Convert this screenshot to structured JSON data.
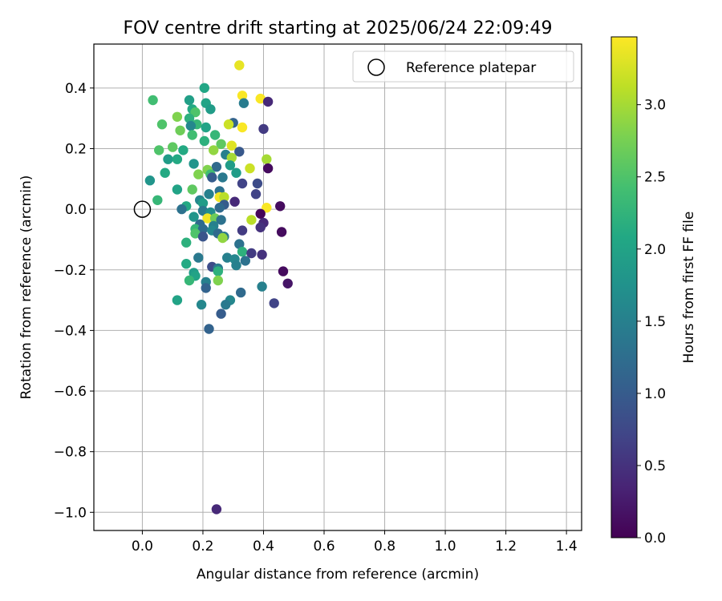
{
  "chart_data": {
    "type": "scatter",
    "title": "FOV centre drift starting at 2025/06/24 22:09:49",
    "xlabel": "Angular distance from reference (arcmin)",
    "ylabel": "Rotation from reference (arcmin)",
    "xlim": [
      -0.16,
      1.45
    ],
    "ylim": [
      -1.06,
      0.545
    ],
    "xticks": [
      0.0,
      0.2,
      0.4,
      0.6,
      0.8,
      1.0,
      1.2,
      1.4
    ],
    "yticks": [
      -1.0,
      -0.8,
      -0.6,
      -0.4,
      -0.2,
      0.0,
      0.2,
      0.4
    ],
    "xtick_labels": [
      "0.0",
      "0.2",
      "0.4",
      "0.6",
      "0.8",
      "1.0",
      "1.2",
      "1.4"
    ],
    "ytick_labels": [
      "−1.0",
      "−0.8",
      "−0.6",
      "−0.4",
      "−0.2",
      "0.0",
      "0.2",
      "0.4"
    ],
    "grid": true,
    "legend": {
      "entries": [
        "Reference platepar"
      ],
      "placement": "top-right"
    },
    "colorbar": {
      "label": "Hours from first FF file",
      "colormap": "viridis",
      "range": [
        0.0,
        3.47
      ],
      "ticks": [
        0.0,
        0.5,
        1.0,
        1.5,
        2.0,
        2.5,
        3.0
      ],
      "tick_labels": [
        "0.0",
        "0.5",
        "1.0",
        "1.5",
        "2.0",
        "2.5",
        "3.0"
      ]
    },
    "reference_point": {
      "x": 0.0,
      "y": 0.0,
      "label": "Reference platepar"
    },
    "points": [
      {
        "x": 0.32,
        "y": 0.475,
        "h": 3.35
      },
      {
        "x": 0.33,
        "y": 0.375,
        "h": 3.45
      },
      {
        "x": 0.39,
        "y": 0.365,
        "h": 3.45
      },
      {
        "x": 0.415,
        "y": 0.355,
        "h": 0.4
      },
      {
        "x": 0.335,
        "y": 0.35,
        "h": 1.45
      },
      {
        "x": 0.205,
        "y": 0.4,
        "h": 2.05
      },
      {
        "x": 0.155,
        "y": 0.36,
        "h": 1.95
      },
      {
        "x": 0.035,
        "y": 0.36,
        "h": 2.4
      },
      {
        "x": 0.21,
        "y": 0.35,
        "h": 2.0
      },
      {
        "x": 0.225,
        "y": 0.33,
        "h": 1.9
      },
      {
        "x": 0.165,
        "y": 0.33,
        "h": 2.1
      },
      {
        "x": 0.175,
        "y": 0.32,
        "h": 2.5
      },
      {
        "x": 0.115,
        "y": 0.305,
        "h": 2.8
      },
      {
        "x": 0.155,
        "y": 0.3,
        "h": 2.2
      },
      {
        "x": 0.065,
        "y": 0.28,
        "h": 2.5
      },
      {
        "x": 0.18,
        "y": 0.28,
        "h": 2.3
      },
      {
        "x": 0.16,
        "y": 0.275,
        "h": 1.6
      },
      {
        "x": 0.21,
        "y": 0.27,
        "h": 2.0
      },
      {
        "x": 0.3,
        "y": 0.285,
        "h": 1.1
      },
      {
        "x": 0.285,
        "y": 0.28,
        "h": 3.2
      },
      {
        "x": 0.33,
        "y": 0.27,
        "h": 3.45
      },
      {
        "x": 0.4,
        "y": 0.265,
        "h": 0.6
      },
      {
        "x": 0.125,
        "y": 0.26,
        "h": 2.7
      },
      {
        "x": 0.24,
        "y": 0.245,
        "h": 2.3
      },
      {
        "x": 0.165,
        "y": 0.245,
        "h": 2.4
      },
      {
        "x": 0.205,
        "y": 0.225,
        "h": 2.2
      },
      {
        "x": 0.26,
        "y": 0.215,
        "h": 2.6
      },
      {
        "x": 0.295,
        "y": 0.21,
        "h": 3.3
      },
      {
        "x": 0.1,
        "y": 0.205,
        "h": 2.6
      },
      {
        "x": 0.055,
        "y": 0.195,
        "h": 2.5
      },
      {
        "x": 0.135,
        "y": 0.195,
        "h": 2.1
      },
      {
        "x": 0.235,
        "y": 0.195,
        "h": 2.9
      },
      {
        "x": 0.32,
        "y": 0.19,
        "h": 0.95
      },
      {
        "x": 0.275,
        "y": 0.18,
        "h": 1.5
      },
      {
        "x": 0.295,
        "y": 0.17,
        "h": 3.0
      },
      {
        "x": 0.41,
        "y": 0.165,
        "h": 3.0
      },
      {
        "x": 0.085,
        "y": 0.165,
        "h": 1.9
      },
      {
        "x": 0.115,
        "y": 0.165,
        "h": 2.1
      },
      {
        "x": 0.17,
        "y": 0.15,
        "h": 1.8
      },
      {
        "x": 0.245,
        "y": 0.14,
        "h": 1.2
      },
      {
        "x": 0.29,
        "y": 0.145,
        "h": 1.9
      },
      {
        "x": 0.355,
        "y": 0.135,
        "h": 3.2
      },
      {
        "x": 0.415,
        "y": 0.135,
        "h": 0.1
      },
      {
        "x": 0.215,
        "y": 0.13,
        "h": 2.8
      },
      {
        "x": 0.075,
        "y": 0.12,
        "h": 2.1
      },
      {
        "x": 0.31,
        "y": 0.12,
        "h": 1.9
      },
      {
        "x": 0.185,
        "y": 0.115,
        "h": 2.8
      },
      {
        "x": 0.225,
        "y": 0.115,
        "h": 2.4
      },
      {
        "x": 0.23,
        "y": 0.105,
        "h": 1.0
      },
      {
        "x": 0.265,
        "y": 0.105,
        "h": 1.4
      },
      {
        "x": 0.025,
        "y": 0.095,
        "h": 1.8
      },
      {
        "x": 0.33,
        "y": 0.085,
        "h": 0.7
      },
      {
        "x": 0.38,
        "y": 0.085,
        "h": 0.8
      },
      {
        "x": 0.115,
        "y": 0.065,
        "h": 2.0
      },
      {
        "x": 0.165,
        "y": 0.065,
        "h": 2.6
      },
      {
        "x": 0.255,
        "y": 0.06,
        "h": 1.3
      },
      {
        "x": 0.22,
        "y": 0.05,
        "h": 1.5
      },
      {
        "x": 0.375,
        "y": 0.05,
        "h": 0.7
      },
      {
        "x": 0.255,
        "y": 0.04,
        "h": 3.4
      },
      {
        "x": 0.27,
        "y": 0.04,
        "h": 3.1
      },
      {
        "x": 0.05,
        "y": 0.03,
        "h": 2.3
      },
      {
        "x": 0.19,
        "y": 0.03,
        "h": 1.6
      },
      {
        "x": 0.305,
        "y": 0.025,
        "h": 0.4
      },
      {
        "x": 0.2,
        "y": 0.02,
        "h": 1.9
      },
      {
        "x": 0.27,
        "y": 0.015,
        "h": 1.0
      },
      {
        "x": 0.145,
        "y": 0.01,
        "h": 2.1
      },
      {
        "x": 0.255,
        "y": 0.005,
        "h": 1.2
      },
      {
        "x": 0.13,
        "y": 0.0,
        "h": 1.3
      },
      {
        "x": 0.41,
        "y": 0.005,
        "h": 3.45
      },
      {
        "x": 0.455,
        "y": 0.01,
        "h": 0.1
      },
      {
        "x": 0.2,
        "y": -0.005,
        "h": 1.4
      },
      {
        "x": 0.225,
        "y": -0.01,
        "h": 1.7
      },
      {
        "x": 0.39,
        "y": -0.015,
        "h": 0.05
      },
      {
        "x": 0.17,
        "y": -0.025,
        "h": 1.8
      },
      {
        "x": 0.215,
        "y": -0.03,
        "h": 3.4
      },
      {
        "x": 0.24,
        "y": -0.03,
        "h": 2.7
      },
      {
        "x": 0.26,
        "y": -0.035,
        "h": 1.3
      },
      {
        "x": 0.36,
        "y": -0.035,
        "h": 3.1
      },
      {
        "x": 0.4,
        "y": -0.045,
        "h": 0.4
      },
      {
        "x": 0.19,
        "y": -0.05,
        "h": 1.2
      },
      {
        "x": 0.235,
        "y": -0.055,
        "h": 1.5
      },
      {
        "x": 0.39,
        "y": -0.06,
        "h": 0.5
      },
      {
        "x": 0.175,
        "y": -0.065,
        "h": 2.3
      },
      {
        "x": 0.2,
        "y": -0.065,
        "h": 1.2
      },
      {
        "x": 0.23,
        "y": -0.07,
        "h": 1.6
      },
      {
        "x": 0.33,
        "y": -0.07,
        "h": 0.6
      },
      {
        "x": 0.46,
        "y": -0.075,
        "h": 0.1
      },
      {
        "x": 0.175,
        "y": -0.08,
        "h": 2.5
      },
      {
        "x": 0.25,
        "y": -0.08,
        "h": 1.2
      },
      {
        "x": 0.2,
        "y": -0.09,
        "h": 0.9
      },
      {
        "x": 0.27,
        "y": -0.09,
        "h": 1.4
      },
      {
        "x": 0.265,
        "y": -0.095,
        "h": 2.9
      },
      {
        "x": 0.145,
        "y": -0.11,
        "h": 2.2
      },
      {
        "x": 0.32,
        "y": -0.115,
        "h": 1.3
      },
      {
        "x": 0.33,
        "y": -0.14,
        "h": 2.2
      },
      {
        "x": 0.36,
        "y": -0.145,
        "h": 0.6
      },
      {
        "x": 0.395,
        "y": -0.15,
        "h": 0.5
      },
      {
        "x": 0.185,
        "y": -0.16,
        "h": 1.4
      },
      {
        "x": 0.28,
        "y": -0.16,
        "h": 1.5
      },
      {
        "x": 0.305,
        "y": -0.165,
        "h": 1.6
      },
      {
        "x": 0.34,
        "y": -0.17,
        "h": 1.3
      },
      {
        "x": 0.145,
        "y": -0.18,
        "h": 2.1
      },
      {
        "x": 0.31,
        "y": -0.185,
        "h": 1.5
      },
      {
        "x": 0.23,
        "y": -0.19,
        "h": 0.8
      },
      {
        "x": 0.25,
        "y": -0.195,
        "h": 1.4
      },
      {
        "x": 0.465,
        "y": -0.205,
        "h": 0.1
      },
      {
        "x": 0.25,
        "y": -0.205,
        "h": 2.2
      },
      {
        "x": 0.17,
        "y": -0.21,
        "h": 1.9
      },
      {
        "x": 0.175,
        "y": -0.22,
        "h": 2.0
      },
      {
        "x": 0.155,
        "y": -0.235,
        "h": 2.3
      },
      {
        "x": 0.25,
        "y": -0.235,
        "h": 2.8
      },
      {
        "x": 0.21,
        "y": -0.24,
        "h": 1.5
      },
      {
        "x": 0.48,
        "y": -0.245,
        "h": 0.2
      },
      {
        "x": 0.21,
        "y": -0.26,
        "h": 1.1
      },
      {
        "x": 0.395,
        "y": -0.255,
        "h": 1.5
      },
      {
        "x": 0.325,
        "y": -0.275,
        "h": 1.2
      },
      {
        "x": 0.115,
        "y": -0.3,
        "h": 2.0
      },
      {
        "x": 0.29,
        "y": -0.3,
        "h": 1.6
      },
      {
        "x": 0.435,
        "y": -0.31,
        "h": 0.7
      },
      {
        "x": 0.195,
        "y": -0.315,
        "h": 1.6
      },
      {
        "x": 0.275,
        "y": -0.315,
        "h": 1.4
      },
      {
        "x": 0.26,
        "y": -0.345,
        "h": 1.0
      },
      {
        "x": 0.22,
        "y": -0.395,
        "h": 1.1
      },
      {
        "x": 0.245,
        "y": -0.99,
        "h": 0.4
      }
    ]
  }
}
